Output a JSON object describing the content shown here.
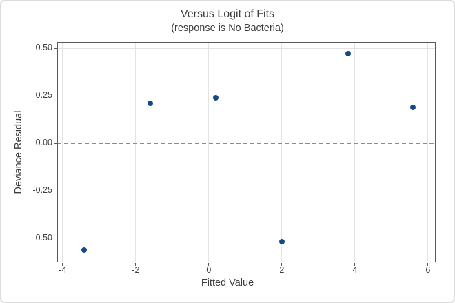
{
  "window": {
    "background": "#FFFFFF",
    "border_color": "#DBDBDB"
  },
  "chart_data": {
    "type": "scatter",
    "title": "Versus Logit of Fits",
    "subtitle": "(response is No Bacteria)",
    "xlabel": "Fitted Value",
    "ylabel": "Deviance Residual",
    "points": [
      {
        "x": -3.42,
        "y": -0.56
      },
      {
        "x": -1.61,
        "y": 0.21
      },
      {
        "x": 0.19,
        "y": 0.24
      },
      {
        "x": 2.0,
        "y": -0.52
      },
      {
        "x": 3.81,
        "y": 0.47
      },
      {
        "x": 5.59,
        "y": 0.19
      }
    ],
    "x_ticks": [
      {
        "value": -4,
        "label": "-4"
      },
      {
        "value": -2,
        "label": "-2"
      },
      {
        "value": 0,
        "label": "0"
      },
      {
        "value": 2,
        "label": "2"
      },
      {
        "value": 4,
        "label": "4"
      },
      {
        "value": 6,
        "label": "6"
      }
    ],
    "y_ticks": [
      {
        "value": 0.5,
        "label": "0.50"
      },
      {
        "value": 0.25,
        "label": "0.25"
      },
      {
        "value": 0.0,
        "label": "0.00"
      },
      {
        "value": -0.25,
        "label": "-0.25"
      },
      {
        "value": -0.5,
        "label": "-0.50"
      }
    ],
    "xlim": [
      -4.15,
      6.21
    ],
    "ylim": [
      -0.627,
      0.533
    ],
    "grid": "on",
    "legend": "none",
    "reference_line_y": 0,
    "reference_line_style": "dashed",
    "colors": {
      "point": "#154985",
      "grid": "#E3E3E3",
      "frame": "#595959",
      "text": "#3D3D3D",
      "reference_line": "#8C8C8C"
    }
  }
}
